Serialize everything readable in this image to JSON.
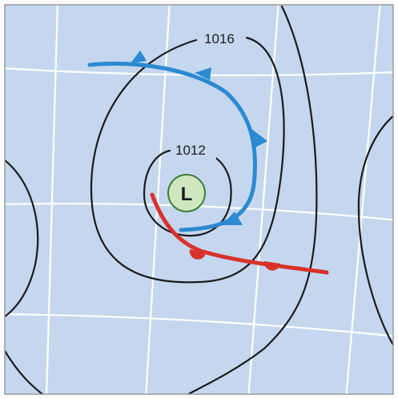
{
  "map": {
    "colors": {
      "ocean": "#c5d7ef",
      "border": "#9a9a9a",
      "grid": "#ffffff",
      "isobar": "#1b1b1b",
      "cold_front": "#2b8ad1",
      "warm_front": "#d8322a",
      "low_fill": "#cfe6bf",
      "low_stroke": "#3f7d3a"
    },
    "isobars": [
      {
        "pressure_label": "1016"
      },
      {
        "pressure_label": "1012"
      }
    ],
    "pressure_center": {
      "label": "L",
      "type": "low"
    },
    "fronts": [
      {
        "type": "cold",
        "symbol": "triangles"
      },
      {
        "type": "warm",
        "symbol": "semicircles"
      }
    ]
  }
}
